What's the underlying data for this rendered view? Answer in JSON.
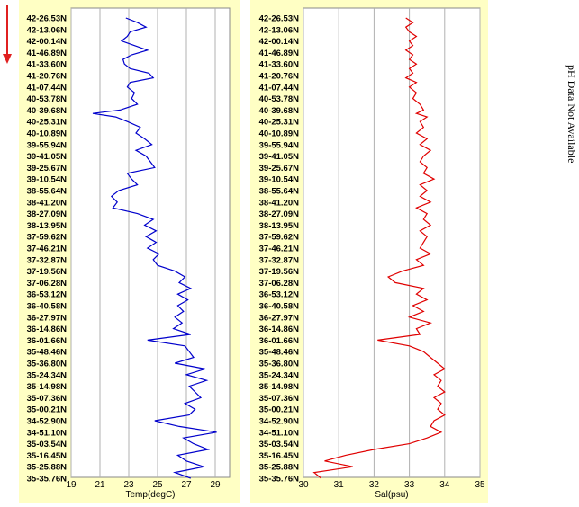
{
  "note": "pH Data Not Available",
  "direction_arrow_color": "#e02020",
  "latitude_labels": [
    "42-26.53N",
    "42-13.06N",
    "42-00.14N",
    "41-46.89N",
    "41-33.60N",
    "41-20.76N",
    "41-07.44N",
    "40-53.78N",
    "40-39.68N",
    "40-25.31N",
    "40-10.89N",
    "39-55.94N",
    "39-41.05N",
    "39-25.67N",
    "39-10.54N",
    "38-55.64N",
    "38-41.20N",
    "38-27.09N",
    "38-13.95N",
    "37-59.62N",
    "37-46.21N",
    "37-32.87N",
    "37-19.56N",
    "37-06.28N",
    "36-53.12N",
    "36-40.58N",
    "36-27.97N",
    "36-14.86N",
    "36-01.66N",
    "35-48.46N",
    "35-36.80N",
    "35-24.34N",
    "35-14.98N",
    "35-07.36N",
    "35-00.21N",
    "34-52.90N",
    "34-51.10N",
    "35-03.54N",
    "35-16.45N",
    "35-25.88N",
    "35-35.76N"
  ],
  "chart_data": [
    {
      "type": "line",
      "xlabel": "Temp(degC)",
      "xticks": [
        19,
        21,
        23,
        25,
        27,
        29
      ],
      "xlim": [
        19,
        30
      ],
      "grid": true,
      "color": "#0000cc",
      "y_axis": "latitude_labels (top to bottom)",
      "x": [
        22.8,
        23.6,
        24.2,
        23.1,
        22.9,
        22.5,
        23.4,
        24.3,
        23.2,
        22.6,
        22.7,
        23.1,
        24.4,
        24.7,
        23.1,
        22.9,
        23.4,
        23.2,
        23.6,
        22.4,
        20.5,
        22.1,
        22.9,
        23.8,
        23.5,
        24.1,
        24.6,
        23.5,
        24.2,
        24.5,
        24.8,
        22.9,
        23.2,
        23.6,
        22.3,
        21.8,
        22.2,
        21.9,
        23.6,
        24.7,
        24.1,
        24.9,
        24.2,
        24.9,
        24.3,
        25.1,
        24.7,
        25.0,
        26.2,
        26.9,
        26.5,
        27.3,
        26.4,
        27.1,
        26.4,
        26.8,
        26.2,
        26.7,
        26.1,
        27.3,
        24.3,
        26.9,
        27.2,
        27.5,
        26.2,
        28.3,
        27.0,
        28.4,
        27.2,
        27.6,
        28.0,
        26.9,
        27.6,
        27.2,
        24.8,
        26.5,
        29.1,
        26.8,
        27.5,
        28.5,
        26.4,
        27.0,
        28.2,
        26.2,
        27.3
      ],
      "y_index": [
        0,
        0.4,
        0.8,
        1.2,
        1.6,
        2,
        2.4,
        2.8,
        3.2,
        3.6,
        4,
        4.4,
        4.8,
        5.2,
        5.6,
        6,
        6.5,
        7,
        7.5,
        8,
        8.3,
        8.6,
        9,
        9.5,
        10,
        10.5,
        11,
        11.5,
        12,
        12.5,
        13,
        13.5,
        14,
        14.5,
        15,
        15.5,
        16,
        16.5,
        17,
        17.5,
        18,
        18.5,
        19,
        19.5,
        20,
        20.5,
        21,
        21.5,
        22,
        22.5,
        23,
        23.5,
        24,
        24.5,
        25,
        25.5,
        26,
        26.5,
        27,
        27.5,
        28,
        28.5,
        29,
        29.5,
        30,
        30.5,
        31,
        31.5,
        32,
        32.5,
        33,
        33.5,
        34,
        34.5,
        35,
        35.5,
        36,
        36.5,
        37,
        37.5,
        38,
        38.5,
        39,
        39.5,
        40
      ]
    },
    {
      "type": "line",
      "xlabel": "Sal(psu)",
      "xticks": [
        30,
        31,
        32,
        33,
        34,
        35
      ],
      "xlim": [
        30,
        35
      ],
      "grid": true,
      "color": "#e00000",
      "y_axis": "latitude_labels (top to bottom)",
      "x": [
        32.9,
        33.1,
        32.9,
        33.0,
        33.2,
        33.0,
        33.1,
        32.9,
        33.1,
        33.0,
        33.2,
        33.0,
        33.1,
        32.9,
        33.2,
        33.0,
        33.2,
        33.1,
        33.3,
        33.4,
        33.2,
        33.5,
        33.3,
        33.4,
        33.2,
        33.5,
        33.3,
        33.6,
        33.4,
        33.3,
        33.5,
        33.4,
        33.7,
        33.3,
        33.5,
        33.3,
        33.6,
        33.2,
        33.5,
        33.4,
        33.6,
        33.3,
        33.5,
        33.4,
        33.3,
        33.6,
        33.2,
        33.4,
        32.8,
        32.4,
        32.6,
        33.4,
        33.2,
        33.5,
        33.1,
        33.4,
        33.0,
        33.6,
        33.2,
        33.3,
        32.1,
        33.0,
        33.4,
        33.6,
        33.8,
        34.0,
        33.7,
        33.9,
        33.8,
        34.0,
        33.7,
        33.9,
        33.8,
        34.0,
        33.7,
        33.6,
        33.9,
        33.5,
        33.0,
        32.0,
        31.2,
        30.6,
        31.4,
        30.3,
        30.5
      ],
      "y_index": [
        0,
        0.4,
        0.8,
        1.2,
        1.6,
        2,
        2.4,
        2.8,
        3.2,
        3.6,
        4,
        4.4,
        4.8,
        5.2,
        5.6,
        6,
        6.5,
        7,
        7.5,
        8,
        8.3,
        8.6,
        9,
        9.5,
        10,
        10.5,
        11,
        11.5,
        12,
        12.5,
        13,
        13.5,
        14,
        14.5,
        15,
        15.5,
        16,
        16.5,
        17,
        17.5,
        18,
        18.5,
        19,
        19.5,
        20,
        20.5,
        21,
        21.5,
        22,
        22.5,
        23,
        23.5,
        24,
        24.5,
        25,
        25.5,
        26,
        26.5,
        27,
        27.5,
        28,
        28.5,
        29,
        29.5,
        30,
        30.5,
        31,
        31.5,
        32,
        32.5,
        33,
        33.5,
        34,
        34.5,
        35,
        35.5,
        36,
        36.5,
        37,
        37.5,
        38,
        38.5,
        39,
        39.5,
        40
      ]
    }
  ]
}
